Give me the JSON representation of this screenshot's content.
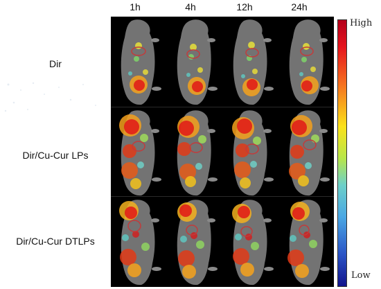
{
  "columns": [
    "1h",
    "4h",
    "12h",
    "24h"
  ],
  "rows": [
    "Dir",
    "Dir/Cu-Cur LPs",
    "Dir/Cu-Cur DTLPs"
  ],
  "scale": {
    "high": "High",
    "low": "Low"
  },
  "colors": {
    "panel_bg": "#000000",
    "ellipse": "#c23b3b",
    "body": "#9b9b9b"
  }
}
